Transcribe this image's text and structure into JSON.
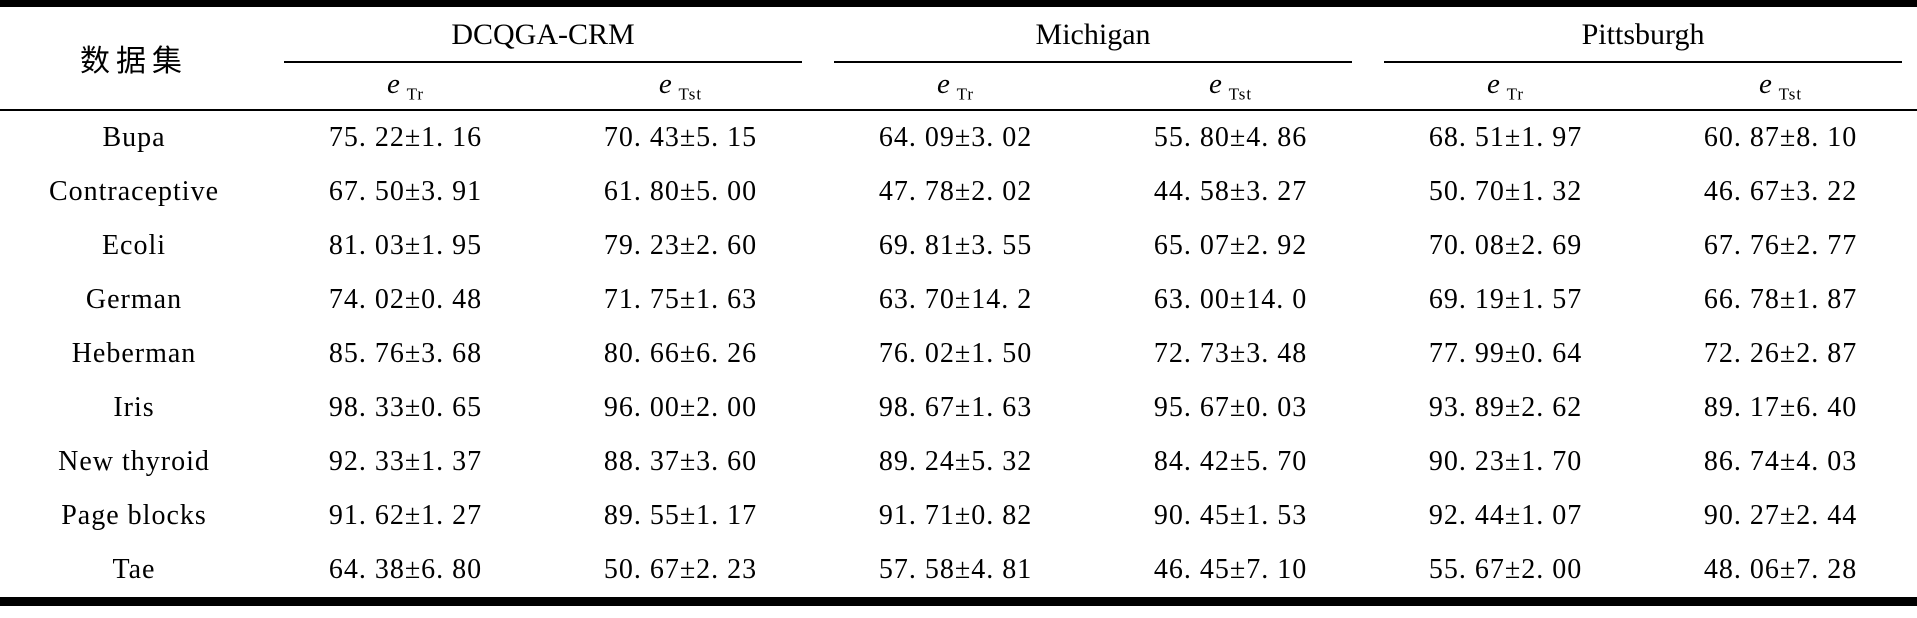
{
  "table": {
    "dataset_header": "数据集",
    "groups": [
      {
        "label": "DCQGA-CRM"
      },
      {
        "label": "Michigan"
      },
      {
        "label": "Pittsburgh"
      }
    ],
    "sub_headers": [
      {
        "symbol": "e",
        "sub": "Tr"
      },
      {
        "symbol": "e",
        "sub": "Tst"
      },
      {
        "symbol": "e",
        "sub": "Tr"
      },
      {
        "symbol": "e",
        "sub": "Tst"
      },
      {
        "symbol": "e",
        "sub": "Tr"
      },
      {
        "symbol": "e",
        "sub": "Tst"
      }
    ],
    "rows": [
      {
        "name": "Bupa",
        "values": [
          "75. 22±1. 16",
          "70. 43±5. 15",
          "64. 09±3. 02",
          "55. 80±4. 86",
          "68. 51±1. 97",
          "60. 87±8. 10"
        ]
      },
      {
        "name": "Contraceptive",
        "values": [
          "67. 50±3. 91",
          "61. 80±5. 00",
          "47. 78±2. 02",
          "44. 58±3. 27",
          "50. 70±1. 32",
          "46. 67±3. 22"
        ]
      },
      {
        "name": "Ecoli",
        "values": [
          "81. 03±1. 95",
          "79. 23±2. 60",
          "69. 81±3. 55",
          "65. 07±2. 92",
          "70. 08±2. 69",
          "67. 76±2. 77"
        ]
      },
      {
        "name": "German",
        "values": [
          "74. 02±0. 48",
          "71. 75±1. 63",
          "63. 70±14. 2",
          "63. 00±14. 0",
          "69. 19±1. 57",
          "66. 78±1. 87"
        ]
      },
      {
        "name": "Heberman",
        "values": [
          "85. 76±3. 68",
          "80. 66±6. 26",
          "76. 02±1. 50",
          "72. 73±3. 48",
          "77. 99±0. 64",
          "72. 26±2. 87"
        ]
      },
      {
        "name": "Iris",
        "values": [
          "98. 33±0. 65",
          "96. 00±2. 00",
          "98. 67±1. 63",
          "95. 67±0. 03",
          "93. 89±2. 62",
          "89. 17±6. 40"
        ]
      },
      {
        "name": "New thyroid",
        "values": [
          "92. 33±1. 37",
          "88. 37±3. 60",
          "89. 24±5. 32",
          "84. 42±5. 70",
          "90. 23±1. 70",
          "86. 74±4. 03"
        ]
      },
      {
        "name": "Page blocks",
        "values": [
          "91. 62±1. 27",
          "89. 55±1. 17",
          "91. 71±0. 82",
          "90. 45±1. 53",
          "92. 44±1. 07",
          "90. 27±2. 44"
        ]
      },
      {
        "name": "Tae",
        "values": [
          "64. 38±6. 80",
          "50. 67±2. 23",
          "57. 58±4. 81",
          "46. 45±7. 10",
          "55. 67±2. 00",
          "48. 06±7. 28"
        ]
      }
    ]
  },
  "colors": {
    "text": "#000000",
    "rule": "#000000",
    "background": "#ffffff"
  }
}
